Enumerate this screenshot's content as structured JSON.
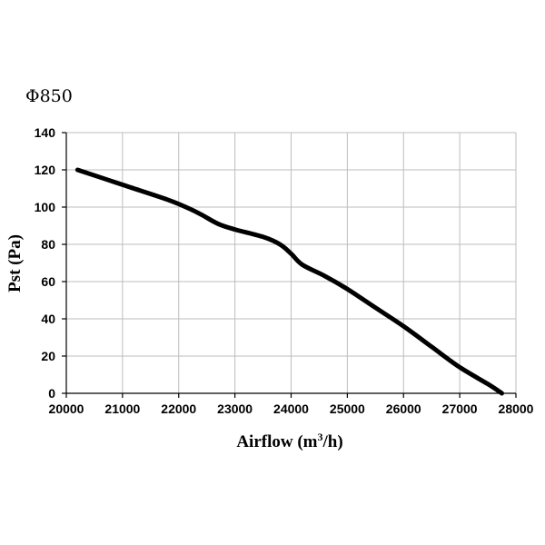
{
  "chart_data": {
    "type": "line",
    "title": "Φ850",
    "xlabel": "Airflow (m",
    "xlabel_sup": "3",
    "xlabel_end": "/h)",
    "ylabel": "Pst (Pa)",
    "xlim": [
      20000,
      28000
    ],
    "ylim": [
      0,
      140
    ],
    "x_ticks": [
      "20000",
      "21000",
      "22000",
      "23000",
      "24000",
      "25000",
      "26000",
      "27000",
      "28000"
    ],
    "y_ticks": [
      "0",
      "20",
      "40",
      "60",
      "80",
      "100",
      "120",
      "140"
    ],
    "grid": true,
    "series": [
      {
        "x": [
          20200,
          21000,
          21800,
          22200,
          22400,
          22700,
          23000,
          23500,
          23800,
          24000,
          24200,
          24600,
          25000,
          25500,
          26000,
          26500,
          27000,
          27500,
          27750
        ],
        "y": [
          120,
          112,
          104,
          99,
          96,
          91,
          88,
          84,
          80,
          75,
          69,
          63,
          56,
          46,
          36,
          25,
          14,
          5,
          0
        ]
      }
    ],
    "line_color": "#000000",
    "grid_color": "#bdbdbd"
  }
}
